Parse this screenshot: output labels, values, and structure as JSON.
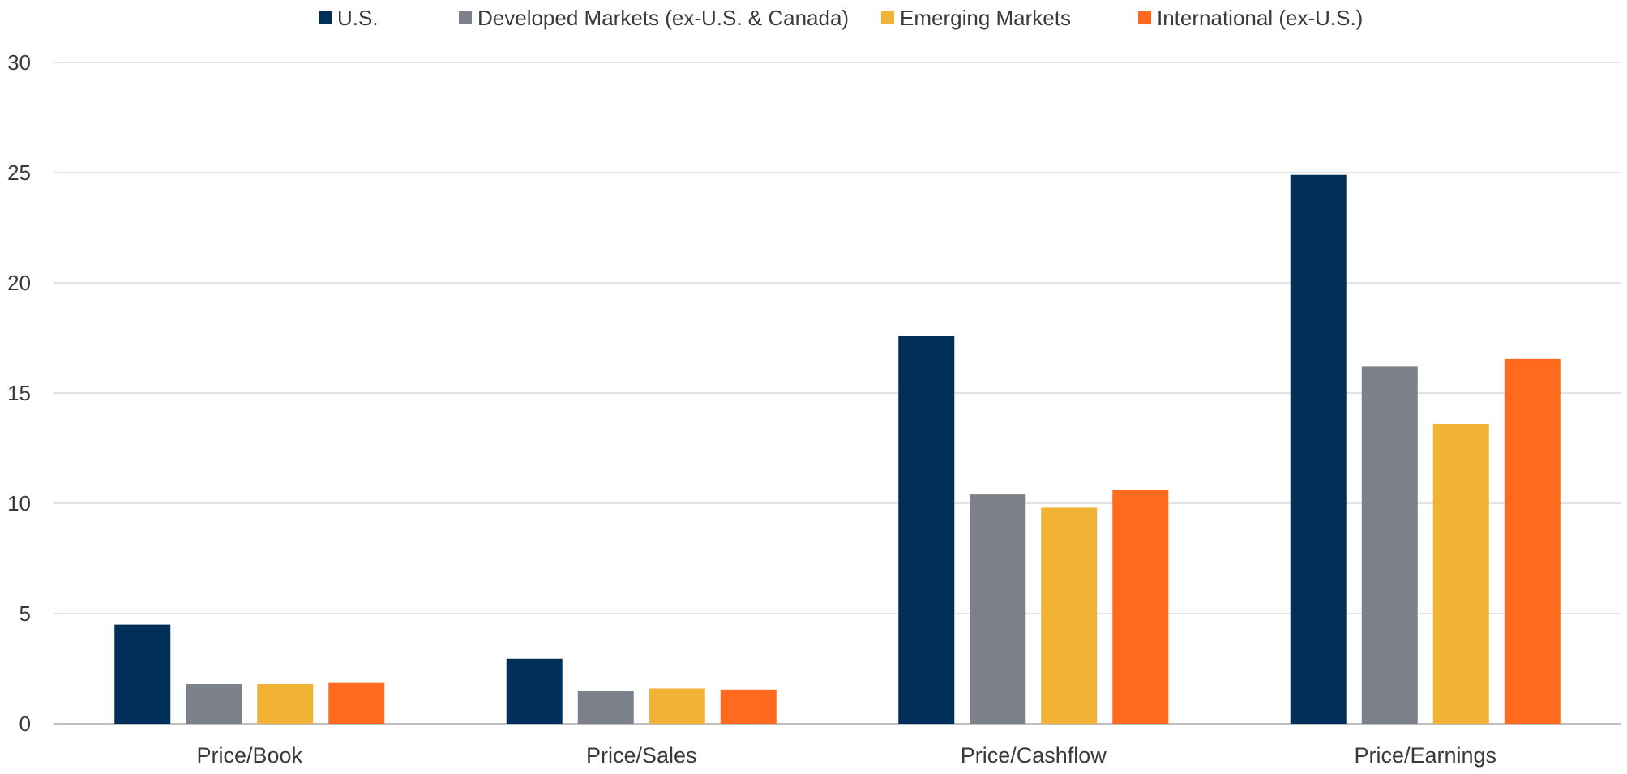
{
  "chart_data": {
    "type": "bar",
    "title": "",
    "xlabel": "",
    "ylabel": "",
    "categories": [
      "Price/Book",
      "Price/Sales",
      "Price/Cashflow",
      "Price/Earnings"
    ],
    "series": [
      {
        "name": "U.S.",
        "color": "#003057",
        "values": [
          4.5,
          2.95,
          17.6,
          24.9
        ]
      },
      {
        "name": "Developed Markets (ex-U.S. & Canada)",
        "color": "#7c8189",
        "values": [
          1.8,
          1.5,
          10.4,
          16.2
        ]
      },
      {
        "name": "Emerging Markets",
        "color": "#f0b335",
        "values": [
          1.8,
          1.6,
          9.8,
          13.6
        ]
      },
      {
        "name": "International (ex-U.S.)",
        "color": "#ff6a1f",
        "values": [
          1.85,
          1.55,
          10.6,
          16.55
        ]
      }
    ],
    "ylim": [
      0,
      30
    ],
    "yticks": [
      0,
      5,
      10,
      15,
      20,
      25,
      30
    ],
    "grid": true,
    "legend_position": "top-center",
    "colors": {
      "gridline": "#d9d9d9",
      "baseline": "#bfbfbf",
      "text": "#3a3a3a"
    }
  }
}
